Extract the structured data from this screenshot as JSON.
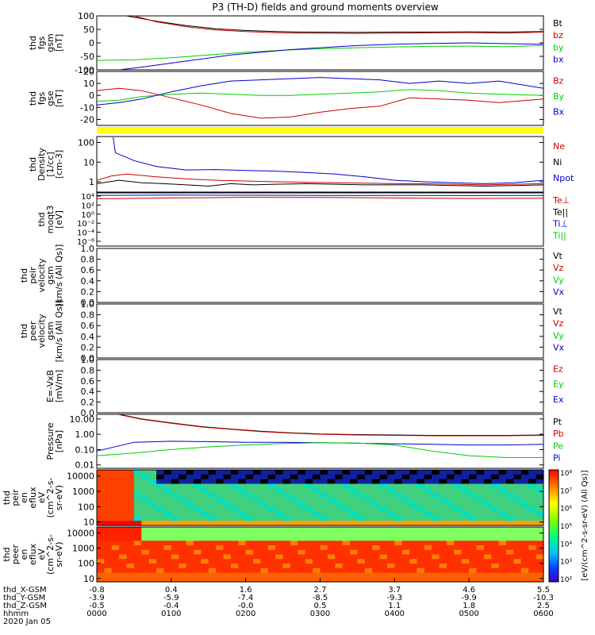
{
  "chart_data": {
    "type": "line",
    "title": "P3 (TH-D) fields and ground moments overview",
    "panels": [
      {
        "id": "fgs_gsm",
        "ylabel": [
          "thd",
          "fgs",
          "gsm",
          "[nT]"
        ],
        "ylim": [
          -100,
          100
        ],
        "yticks": [
          -100,
          -50,
          0,
          50,
          100
        ],
        "legend": [
          {
            "label": "Bt",
            "color": "#000000"
          },
          {
            "label": "bz",
            "color": "#cc0000"
          },
          {
            "label": "by",
            "color": "#00cc00"
          },
          {
            "label": "bx",
            "color": "#0000cc"
          }
        ],
        "series": [
          {
            "name": "Bt",
            "color": "#000000",
            "x": [
              0.4,
              0.8,
              1.2,
              1.6,
              2.0,
              2.4,
              2.8,
              3.5,
              4.0,
              4.5,
              5.0,
              5.5,
              6.0
            ],
            "values": [
              100,
              80,
              64,
              52,
              46,
              42,
              40,
              39,
              40,
              40,
              41,
              40,
              42
            ]
          },
          {
            "name": "bz",
            "color": "#cc0000",
            "x": [
              0.5,
              0.8,
              1.2,
              1.6,
              2.0,
              2.4,
              2.8,
              3.5,
              4.0,
              4.5,
              5.0,
              5.5,
              6.0
            ],
            "values": [
              100,
              78,
              60,
              48,
              42,
              38,
              36,
              35,
              36,
              37,
              38,
              36,
              40
            ]
          },
          {
            "name": "by",
            "color": "#00cc00",
            "x": [
              0,
              0.5,
              1.0,
              1.5,
              2.0,
              2.5,
              3.0,
              3.5,
              4.0,
              4.5,
              5.0,
              5.5,
              6.0
            ],
            "values": [
              -65,
              -63,
              -55,
              -45,
              -35,
              -27,
              -22,
              -18,
              -15,
              -13,
              -12,
              -14,
              -10
            ]
          },
          {
            "name": "bx",
            "color": "#0000cc",
            "x": [
              0.3,
              0.6,
              1.0,
              1.4,
              1.8,
              2.2,
              2.6,
              3.0,
              3.5,
              4.0,
              4.5,
              5.0,
              5.5,
              6.0
            ],
            "values": [
              -100,
              -90,
              -75,
              -60,
              -45,
              -35,
              -25,
              -18,
              -10,
              -5,
              -2,
              0,
              -3,
              -5
            ]
          }
        ]
      },
      {
        "id": "fgs_gse",
        "ylabel": [
          "thd",
          "fgs",
          "gse",
          "[nT]"
        ],
        "ylim": [
          -25,
          20
        ],
        "yticks": [
          -20,
          -10,
          0,
          10,
          20
        ],
        "legend": [
          {
            "label": "Bz",
            "color": "#cc0000"
          },
          {
            "label": "By",
            "color": "#00cc00"
          },
          {
            "label": "Bx",
            "color": "#0000cc"
          }
        ],
        "series": [
          {
            "name": "Bz",
            "color": "#cc0000",
            "x": [
              0,
              0.3,
              0.6,
              1.0,
              1.4,
              1.8,
              2.2,
              2.6,
              3.0,
              3.4,
              3.8,
              4.2,
              4.6,
              5.0,
              5.4,
              6.0
            ],
            "values": [
              4,
              6,
              4,
              -2,
              -8,
              -15,
              -19,
              -18,
              -14,
              -11,
              -9,
              -2,
              -3,
              -4,
              -6,
              -3
            ]
          },
          {
            "name": "By",
            "color": "#00cc00",
            "x": [
              0,
              0.3,
              0.6,
              1.0,
              1.4,
              1.8,
              2.2,
              2.6,
              3.0,
              3.4,
              3.8,
              4.2,
              4.6,
              5.0,
              5.4,
              6.0
            ],
            "values": [
              -5,
              -4,
              -1,
              1,
              2,
              1,
              0,
              0,
              1,
              2,
              3,
              5,
              4,
              2,
              1,
              0
            ]
          },
          {
            "name": "Bx",
            "color": "#0000cc",
            "x": [
              0,
              0.3,
              0.6,
              1.0,
              1.4,
              1.8,
              2.2,
              2.6,
              3.0,
              3.4,
              3.8,
              4.2,
              4.6,
              5.0,
              5.4,
              6.0
            ],
            "values": [
              -8,
              -6,
              -3,
              3,
              8,
              12,
              13,
              14,
              15,
              14,
              13,
              10,
              12,
              10,
              12,
              6
            ]
          }
        ]
      },
      {
        "id": "flag_bar",
        "ylabel": [],
        "bar_color": "#ffff00"
      },
      {
        "id": "density",
        "ylabel": [
          "thd",
          "Density",
          "[1/cc]",
          "[cm-3]"
        ],
        "ylog": true,
        "ylim": [
          0.3,
          200
        ],
        "yticks": [
          1,
          10,
          100
        ],
        "legend": [
          {
            "label": "Ne",
            "color": "#cc0000"
          },
          {
            "label": "Ni",
            "color": "#000000"
          },
          {
            "label": "Npot",
            "color": "#0000cc"
          }
        ],
        "series": [
          {
            "name": "Npot",
            "color": "#0000cc",
            "x": [
              0.22,
              0.25,
              0.5,
              0.8,
              1.2,
              1.6,
              2.0,
              2.4,
              2.8,
              3.2,
              3.6,
              4.0,
              4.4,
              4.8,
              5.2,
              5.6,
              6.0
            ],
            "values": [
              180,
              30,
              12,
              6,
              4,
              4.2,
              3.8,
              3.5,
              3,
              2.5,
              1.8,
              1.2,
              1,
              0.9,
              0.8,
              0.9,
              1.2
            ]
          },
          {
            "name": "Ne",
            "color": "#cc0000",
            "x": [
              0,
              0.2,
              0.4,
              0.8,
              1.2,
              1.6,
              2.0,
              2.4,
              2.8,
              3.2,
              3.6,
              4.0,
              4.4,
              4.8,
              5.2,
              5.6,
              6.0
            ],
            "values": [
              1.2,
              2,
              2.5,
              1.8,
              1.4,
              1.2,
              1.1,
              1,
              0.95,
              0.9,
              0.85,
              0.8,
              0.8,
              0.75,
              0.7,
              0.75,
              0.8
            ]
          },
          {
            "name": "Ni",
            "color": "#000000",
            "x": [
              0,
              0.3,
              0.6,
              0.9,
              1.2,
              1.5,
              1.8,
              2.1,
              2.4,
              2.8,
              3.2,
              3.6,
              4.0,
              4.4,
              4.8,
              5.2,
              5.6,
              6.0
            ],
            "values": [
              0.8,
              1.2,
              0.9,
              0.8,
              0.7,
              0.6,
              0.8,
              0.7,
              0.75,
              0.8,
              0.75,
              0.7,
              0.7,
              0.7,
              0.65,
              0.6,
              0.65,
              0.7
            ]
          }
        ]
      },
      {
        "id": "temperature",
        "ylabel": [
          "thd",
          "moqt3",
          "[eV]"
        ],
        "ylog": true,
        "ylim": [
          1e-07,
          10000
        ],
        "ytick_labels": [
          "10⁴",
          "10²",
          "10⁰",
          "10⁻²",
          "10⁻⁴",
          "10⁻⁶"
        ],
        "legend": [
          {
            "label": "Te⊥",
            "color": "#cc0000"
          },
          {
            "label": "Te||",
            "color": "#000000"
          },
          {
            "label": "Ti⊥",
            "color": "#0000cc"
          },
          {
            "label": "Ti||",
            "color": "#00cc00"
          }
        ],
        "series": [
          {
            "name": "Ti",
            "color": "#0000cc",
            "x": [
              0,
              1,
              2,
              3,
              4,
              5,
              6
            ],
            "values": [
              3000,
              3500,
              3200,
              3000,
              3000,
              2800,
              3000
            ]
          },
          {
            "name": "Te",
            "color": "#cc0000",
            "x": [
              0,
              1,
              2,
              3,
              4,
              5,
              6
            ],
            "values": [
              600,
              900,
              1200,
              1100,
              900,
              700,
              800
            ]
          }
        ]
      },
      {
        "id": "peir_velocity",
        "ylabel": [
          "thd",
          "peir",
          "velocity",
          "gsm",
          "[km/s (All Qs)]"
        ],
        "ylim": [
          0,
          1
        ],
        "yticks": [
          0.0,
          0.2,
          0.4,
          0.6,
          0.8,
          1.0
        ],
        "ytick_labels": [
          "0.0",
          "0.2",
          "0.4",
          "0.6",
          "0.8",
          "1.0"
        ],
        "legend": [
          {
            "label": "Vt",
            "color": "#000000"
          },
          {
            "label": "Vz",
            "color": "#cc0000"
          },
          {
            "label": "Vy",
            "color": "#00cc00"
          },
          {
            "label": "Vx",
            "color": "#0000cc"
          }
        ],
        "series": []
      },
      {
        "id": "peer_velocity",
        "ylabel": [
          "thd",
          "peer",
          "velocity",
          "gsm",
          "[km/s (All Qs)]"
        ],
        "ylim": [
          0,
          1
        ],
        "yticks": [
          0.0,
          0.2,
          0.4,
          0.6,
          0.8,
          1.0
        ],
        "ytick_labels": [
          "0.0",
          "0.2",
          "0.4",
          "0.6",
          "0.8",
          "1.0"
        ],
        "legend": [
          {
            "label": "Vt",
            "color": "#000000"
          },
          {
            "label": "Vz",
            "color": "#cc0000"
          },
          {
            "label": "Vy",
            "color": "#00cc00"
          },
          {
            "label": "Vx",
            "color": "#0000cc"
          }
        ],
        "series": []
      },
      {
        "id": "efield",
        "ylabel": [
          "E=-VxB",
          "[mV/m]"
        ],
        "ylim": [
          0,
          1
        ],
        "yticks": [
          0.0,
          0.2,
          0.4,
          0.6,
          0.8,
          1.0
        ],
        "ytick_labels": [
          "0.0",
          "0.2",
          "0.4",
          "0.6",
          "0.8",
          "1.0"
        ],
        "legend": [
          {
            "label": "Ez",
            "color": "#cc0000"
          },
          {
            "label": "Ey",
            "color": "#00cc00"
          },
          {
            "label": "Ex",
            "color": "#0000cc"
          }
        ],
        "series": []
      },
      {
        "id": "pressure",
        "ylabel": [
          "Pressure",
          "[nPa]"
        ],
        "ylog": true,
        "ylim": [
          0.006,
          20
        ],
        "yticks": [
          0.01,
          0.1,
          1,
          10
        ],
        "ytick_labels": [
          "0.01",
          "0.10",
          "1.00",
          "10.00"
        ],
        "legend": [
          {
            "label": "Pt",
            "color": "#000000"
          },
          {
            "label": "Pb",
            "color": "#cc0000"
          },
          {
            "label": "Pe",
            "color": "#00cc00"
          },
          {
            "label": "Pi",
            "color": "#0000cc"
          }
        ],
        "series": [
          {
            "name": "Pt",
            "color": "#000000",
            "x": [
              0.3,
              0.6,
              1.0,
              1.4,
              1.8,
              2.2,
              2.6,
              3.0,
              3.5,
              4.0,
              4.5,
              5.0,
              5.5,
              6.0
            ],
            "values": [
              20,
              10,
              5.5,
              3.2,
              2.2,
              1.6,
              1.25,
              1.05,
              0.95,
              0.9,
              0.85,
              0.85,
              0.85,
              0.9
            ]
          },
          {
            "name": "Pb",
            "color": "#cc0000",
            "x": [
              0.3,
              0.6,
              1.0,
              1.4,
              1.8,
              2.2,
              2.6,
              3.0,
              3.5,
              4.0,
              4.5,
              5.0,
              5.5,
              6.0
            ],
            "values": [
              19,
              9.5,
              5.2,
              3,
              2.1,
              1.5,
              1.2,
              1.0,
              0.9,
              0.85,
              0.8,
              0.8,
              0.8,
              0.85
            ]
          },
          {
            "name": "Pi",
            "color": "#0000cc",
            "x": [
              0,
              0.5,
              1.0,
              1.5,
              2.0,
              2.5,
              3.0,
              3.5,
              4.0,
              4.5,
              5.0,
              5.5,
              6.0
            ],
            "values": [
              0.08,
              0.3,
              0.35,
              0.33,
              0.3,
              0.3,
              0.28,
              0.26,
              0.24,
              0.22,
              0.2,
              0.2,
              0.22
            ]
          },
          {
            "name": "Pe",
            "color": "#00cc00",
            "x": [
              0,
              0.5,
              1.0,
              1.5,
              2.0,
              2.5,
              3.0,
              3.5,
              4.0,
              4.5,
              5.0,
              5.5,
              6.0
            ],
            "values": [
              0.04,
              0.06,
              0.1,
              0.15,
              0.2,
              0.25,
              0.28,
              0.27,
              0.2,
              0.08,
              0.04,
              0.03,
              0.03
            ]
          }
        ]
      },
      {
        "id": "peir_spec",
        "type": "heatmap",
        "ylabel": [
          "thd",
          "peir",
          "en",
          "eflux",
          "eV",
          "(cm^2-s-",
          "sr-eV)"
        ],
        "ylog": true,
        "ylim": [
          6,
          25000
        ],
        "yticks": [
          10,
          100,
          1000,
          10000
        ],
        "ytick_labels": [
          "10",
          "100",
          "1000",
          "10000"
        ]
      },
      {
        "id": "peer_spec",
        "type": "heatmap",
        "ylabel": [
          "thd",
          "peer",
          "en",
          "eflux",
          "eV",
          "(cm^2-s-",
          "sr-eV)"
        ],
        "ylog": true,
        "ylim": [
          6,
          25000
        ],
        "yticks": [
          10,
          100,
          1000,
          10000
        ],
        "ytick_labels": [
          "10",
          "100",
          "1000",
          "10000"
        ]
      }
    ],
    "colorbar": {
      "labels": [
        "10⁸",
        "10⁷",
        "10⁶",
        "10⁵",
        "10⁴",
        "10³",
        "10²"
      ],
      "title": "[eV/(cm^2-s-sr-eV) (All Qs)]",
      "colors": [
        "#ff0000",
        "#ff7f00",
        "#ffff00",
        "#7fff00",
        "#00ff7f",
        "#00bfff",
        "#0040ff",
        "#4000bf"
      ]
    },
    "x_axis": {
      "xlim": [
        0,
        6
      ],
      "ticks": [
        0,
        1,
        2,
        3,
        4,
        5,
        6
      ],
      "rows": [
        {
          "label": "thd_X-GSM",
          "values": [
            "-0.8",
            "0.4",
            "1.6",
            "2.7",
            "3.7",
            "4.6",
            "5.5"
          ]
        },
        {
          "label": "thd_Y-GSM",
          "values": [
            "-3.9",
            "-5.9",
            "-7.4",
            "-8.5",
            "-9.3",
            "-9.9",
            "-10.3"
          ]
        },
        {
          "label": "thd_Z-GSM",
          "values": [
            "-0.5",
            "-0.4",
            "-0.0",
            "0.5",
            "1.1",
            "1.8",
            "2.5"
          ]
        },
        {
          "label": "hhmm",
          "values": [
            "0000",
            "0100",
            "0200",
            "0300",
            "0400",
            "0500",
            "0600"
          ]
        }
      ],
      "date": "2020 Jan 05"
    }
  }
}
